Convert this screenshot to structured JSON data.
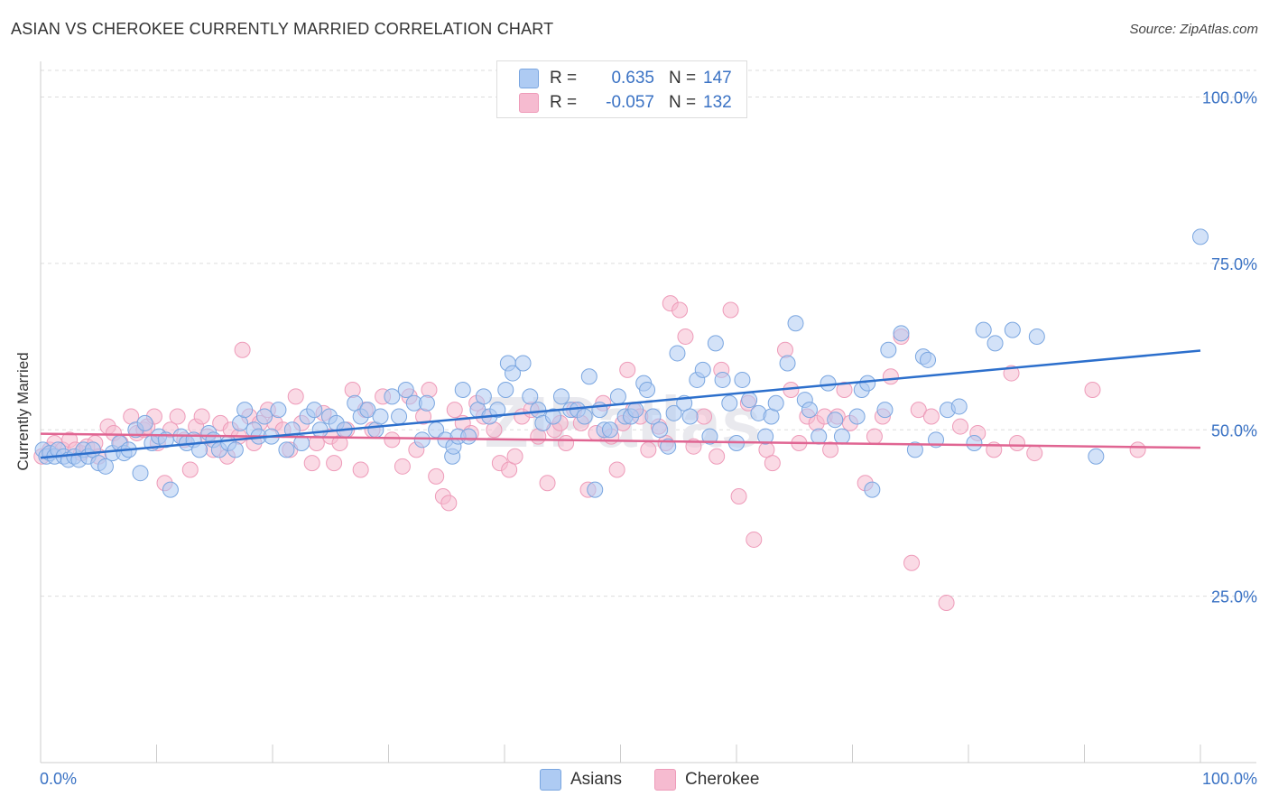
{
  "title": "ASIAN VS CHEROKEE CURRENTLY MARRIED CORRELATION CHART",
  "source": "Source: ZipAtlas.com",
  "watermark": "ZIPatlas",
  "legend": {
    "rows": [
      {
        "swatch_color": "#aecbf3",
        "r_label": "R =",
        "r_value": "0.635",
        "n_label": "N =",
        "n_value": "147"
      },
      {
        "swatch_color": "#f6bbd0",
        "r_label": "R =",
        "r_value": "-0.057",
        "n_label": "N =",
        "n_value": "132"
      }
    ]
  },
  "colors": {
    "asians_fill": "#aecbf3",
    "asians_stroke": "#7aa6e0",
    "asians_line": "#2c6fcc",
    "cherokee_fill": "#f6bbd0",
    "cherokee_stroke": "#ee9bb9",
    "cherokee_line": "#e06592",
    "tick_label": "#3a72c4",
    "grid": "#dddddd"
  },
  "chart_data": {
    "type": "scatter",
    "title": "ASIAN VS CHEROKEE CURRENTLY MARRIED CORRELATION CHART",
    "xlabel": "",
    "ylabel": "Currently Married",
    "xlim": [
      0,
      100
    ],
    "ylim": [
      0,
      104
    ],
    "x_tick_labels": [
      "0.0%",
      "100.0%"
    ],
    "y_ticks": [
      25,
      50,
      75,
      100
    ],
    "y_tick_labels": [
      "25.0%",
      "50.0%",
      "75.0%",
      "100.0%"
    ],
    "grid": true,
    "legend_position": "top-center",
    "series": [
      {
        "name": "Asians",
        "trend": {
          "x": [
            0,
            100
          ],
          "y": [
            45.8,
            61.9
          ]
        },
        "points": [
          [
            0.2,
            47
          ],
          [
            0.5,
            46
          ],
          [
            0.8,
            46.5
          ],
          [
            1.2,
            46
          ],
          [
            1.5,
            47
          ],
          [
            2,
            46
          ],
          [
            2.4,
            45.5
          ],
          [
            2.9,
            46
          ],
          [
            3.3,
            45.5
          ],
          [
            3.7,
            47
          ],
          [
            4.1,
            46
          ],
          [
            4.5,
            47
          ],
          [
            5,
            45
          ],
          [
            5.6,
            44.5
          ],
          [
            6.2,
            46.5
          ],
          [
            6.8,
            48
          ],
          [
            7.2,
            46.5
          ],
          [
            7.6,
            47
          ],
          [
            8.2,
            50
          ],
          [
            8.6,
            43.5
          ],
          [
            9,
            51
          ],
          [
            9.6,
            48
          ],
          [
            10.2,
            49
          ],
          [
            10.8,
            48.5
          ],
          [
            11.2,
            41
          ],
          [
            12.1,
            49
          ],
          [
            12.6,
            48
          ],
          [
            13.2,
            48.5
          ],
          [
            13.7,
            47
          ],
          [
            14.5,
            49.5
          ],
          [
            14.9,
            48.5
          ],
          [
            15.4,
            47
          ],
          [
            16.2,
            48
          ],
          [
            16.8,
            47
          ],
          [
            17.2,
            51
          ],
          [
            17.6,
            53
          ],
          [
            18.4,
            50
          ],
          [
            18.8,
            49
          ],
          [
            19.3,
            52
          ],
          [
            19.9,
            49
          ],
          [
            20.5,
            53
          ],
          [
            21.2,
            47
          ],
          [
            21.7,
            50
          ],
          [
            22.5,
            48
          ],
          [
            23,
            52
          ],
          [
            23.6,
            53
          ],
          [
            24.1,
            50
          ],
          [
            24.9,
            52
          ],
          [
            25.5,
            51
          ],
          [
            26.2,
            50
          ],
          [
            27.1,
            54
          ],
          [
            27.6,
            52
          ],
          [
            28.2,
            53
          ],
          [
            28.9,
            50
          ],
          [
            29.3,
            52
          ],
          [
            30.3,
            55
          ],
          [
            30.9,
            52
          ],
          [
            31.5,
            56
          ],
          [
            32.2,
            54
          ],
          [
            32.9,
            48.5
          ],
          [
            33.3,
            54
          ],
          [
            34.1,
            50
          ],
          [
            34.9,
            48.5
          ],
          [
            35.5,
            46
          ],
          [
            35.6,
            47.5
          ],
          [
            36,
            49
          ],
          [
            36.4,
            56
          ],
          [
            36.9,
            49
          ],
          [
            37.7,
            53
          ],
          [
            38.2,
            55
          ],
          [
            38.7,
            52
          ],
          [
            39.4,
            53
          ],
          [
            40.1,
            56
          ],
          [
            40.3,
            60
          ],
          [
            40.7,
            58.5
          ],
          [
            41.6,
            60
          ],
          [
            42.2,
            55
          ],
          [
            42.9,
            53
          ],
          [
            43.3,
            51
          ],
          [
            44.2,
            52
          ],
          [
            44.9,
            55
          ],
          [
            45.7,
            53
          ],
          [
            46.3,
            53
          ],
          [
            46.9,
            52
          ],
          [
            47.3,
            58
          ],
          [
            47.8,
            41
          ],
          [
            48.2,
            53
          ],
          [
            48.6,
            50
          ],
          [
            49.1,
            50
          ],
          [
            49.8,
            55
          ],
          [
            50.4,
            52
          ],
          [
            50.9,
            52
          ],
          [
            51.3,
            53
          ],
          [
            52,
            57
          ],
          [
            52.3,
            56
          ],
          [
            52.8,
            52
          ],
          [
            53.4,
            50
          ],
          [
            54.1,
            47.5
          ],
          [
            54.6,
            52.5
          ],
          [
            54.9,
            61.5
          ],
          [
            55.5,
            54
          ],
          [
            56,
            52
          ],
          [
            56.6,
            57.5
          ],
          [
            57.1,
            59
          ],
          [
            57.7,
            49
          ],
          [
            58.2,
            63
          ],
          [
            58.8,
            57.5
          ],
          [
            59.4,
            54
          ],
          [
            60,
            48
          ],
          [
            60.5,
            57.5
          ],
          [
            61.1,
            54.5
          ],
          [
            61.9,
            52.5
          ],
          [
            62.5,
            49
          ],
          [
            63,
            52
          ],
          [
            63.4,
            54
          ],
          [
            64.4,
            60
          ],
          [
            65.1,
            66
          ],
          [
            65.9,
            54.5
          ],
          [
            66.3,
            53
          ],
          [
            67.1,
            49
          ],
          [
            67.9,
            57
          ],
          [
            68.5,
            51.5
          ],
          [
            69.1,
            49
          ],
          [
            70.4,
            52
          ],
          [
            70.8,
            56
          ],
          [
            71.3,
            57
          ],
          [
            71.7,
            41
          ],
          [
            72.8,
            53
          ],
          [
            73.1,
            62
          ],
          [
            74.2,
            64.5
          ],
          [
            75.4,
            47
          ],
          [
            76.1,
            61
          ],
          [
            76.5,
            60.5
          ],
          [
            77.2,
            48.5
          ],
          [
            78.2,
            53
          ],
          [
            79.2,
            53.5
          ],
          [
            80.5,
            48
          ],
          [
            81.3,
            65
          ],
          [
            82.3,
            63
          ],
          [
            83.8,
            65
          ],
          [
            85.9,
            64
          ],
          [
            91,
            46
          ],
          [
            100,
            79
          ]
        ]
      },
      {
        "name": "Cherokee",
        "trend": {
          "x": [
            0,
            100
          ],
          "y": [
            49.4,
            47.3
          ]
        },
        "points": [
          [
            0.1,
            46
          ],
          [
            0.8,
            47
          ],
          [
            1.2,
            48
          ],
          [
            1.9,
            47
          ],
          [
            2.5,
            48.5
          ],
          [
            3,
            47
          ],
          [
            3.5,
            46.5
          ],
          [
            4,
            47.5
          ],
          [
            4.7,
            48
          ],
          [
            5,
            46
          ],
          [
            5.8,
            50.5
          ],
          [
            6.3,
            49.5
          ],
          [
            6.9,
            48
          ],
          [
            7.8,
            52
          ],
          [
            8.3,
            49.5
          ],
          [
            8.9,
            50
          ],
          [
            9.2,
            50.5
          ],
          [
            9.8,
            52
          ],
          [
            10.1,
            48
          ],
          [
            10.7,
            42
          ],
          [
            11.2,
            50
          ],
          [
            11.8,
            52
          ],
          [
            12.4,
            48.5
          ],
          [
            12.9,
            44
          ],
          [
            13.4,
            50.5
          ],
          [
            13.9,
            52
          ],
          [
            14.4,
            49
          ],
          [
            14.9,
            47
          ],
          [
            15.5,
            51
          ],
          [
            16.1,
            46
          ],
          [
            16.4,
            50
          ],
          [
            17.1,
            49
          ],
          [
            17.4,
            62
          ],
          [
            18,
            52
          ],
          [
            18.4,
            48
          ],
          [
            18.9,
            51
          ],
          [
            19.6,
            53
          ],
          [
            20.2,
            51
          ],
          [
            20.9,
            50
          ],
          [
            21.5,
            47
          ],
          [
            22,
            55
          ],
          [
            22.5,
            51
          ],
          [
            23.4,
            45
          ],
          [
            23.8,
            48
          ],
          [
            24.4,
            52.5
          ],
          [
            25,
            49
          ],
          [
            25.3,
            45
          ],
          [
            25.8,
            48
          ],
          [
            26.4,
            50
          ],
          [
            26.9,
            56
          ],
          [
            27.6,
            44
          ],
          [
            28,
            53
          ],
          [
            28.6,
            50
          ],
          [
            29.5,
            55
          ],
          [
            30.3,
            48.5
          ],
          [
            31.2,
            44.5
          ],
          [
            31.8,
            55
          ],
          [
            32.4,
            47
          ],
          [
            33,
            52
          ],
          [
            33.5,
            56
          ],
          [
            34.1,
            43
          ],
          [
            34.7,
            40
          ],
          [
            35.2,
            39
          ],
          [
            35.7,
            53
          ],
          [
            36.4,
            51
          ],
          [
            37.1,
            49.5
          ],
          [
            37.6,
            54
          ],
          [
            38.2,
            52
          ],
          [
            39.1,
            50
          ],
          [
            39.6,
            45
          ],
          [
            40.4,
            44
          ],
          [
            40.9,
            46
          ],
          [
            41.5,
            52
          ],
          [
            42.3,
            53
          ],
          [
            42.9,
            49
          ],
          [
            43.7,
            42
          ],
          [
            44.3,
            50
          ],
          [
            44.8,
            51
          ],
          [
            45.3,
            48
          ],
          [
            46,
            53
          ],
          [
            46.6,
            51
          ],
          [
            47.2,
            41
          ],
          [
            47.9,
            49.5
          ],
          [
            48.5,
            54
          ],
          [
            49.2,
            49
          ],
          [
            49.7,
            44
          ],
          [
            50.2,
            51
          ],
          [
            50.6,
            59
          ],
          [
            51.1,
            53
          ],
          [
            51.7,
            52
          ],
          [
            52.4,
            47
          ],
          [
            53.3,
            50.5
          ],
          [
            53.9,
            48
          ],
          [
            54.3,
            69
          ],
          [
            55.1,
            68
          ],
          [
            55.6,
            64
          ],
          [
            56.3,
            47.5
          ],
          [
            57.2,
            52
          ],
          [
            58.3,
            46
          ],
          [
            58.7,
            59
          ],
          [
            59.5,
            68
          ],
          [
            60.2,
            40
          ],
          [
            61,
            54
          ],
          [
            61.5,
            33.5
          ],
          [
            62.6,
            47
          ],
          [
            63.1,
            45
          ],
          [
            64.2,
            62
          ],
          [
            64.7,
            56
          ],
          [
            65.4,
            48
          ],
          [
            66.1,
            52
          ],
          [
            66.9,
            51
          ],
          [
            67.6,
            52
          ],
          [
            68.1,
            47
          ],
          [
            68.7,
            52
          ],
          [
            69.3,
            56
          ],
          [
            69.8,
            51
          ],
          [
            71.1,
            42
          ],
          [
            71.9,
            49
          ],
          [
            72.6,
            52
          ],
          [
            73.3,
            58
          ],
          [
            74.2,
            64
          ],
          [
            75.1,
            30
          ],
          [
            75.7,
            53
          ],
          [
            76.8,
            52
          ],
          [
            78.1,
            24
          ],
          [
            79.3,
            50.5
          ],
          [
            80.8,
            49.5
          ],
          [
            82.2,
            47
          ],
          [
            83.7,
            58.5
          ],
          [
            84.2,
            48
          ],
          [
            85.7,
            46.5
          ],
          [
            90.7,
            56
          ],
          [
            94.6,
            47
          ]
        ]
      }
    ]
  },
  "axis": {
    "x_left_label": "0.0%",
    "x_right_label": "100.0%",
    "y_labels": [
      "25.0%",
      "50.0%",
      "75.0%",
      "100.0%"
    ],
    "ylabel": "Currently Married"
  },
  "bottom_legend": [
    {
      "label": "Asians",
      "swatch_color": "#aecbf3"
    },
    {
      "label": "Cherokee",
      "swatch_color": "#f6bbd0"
    }
  ]
}
